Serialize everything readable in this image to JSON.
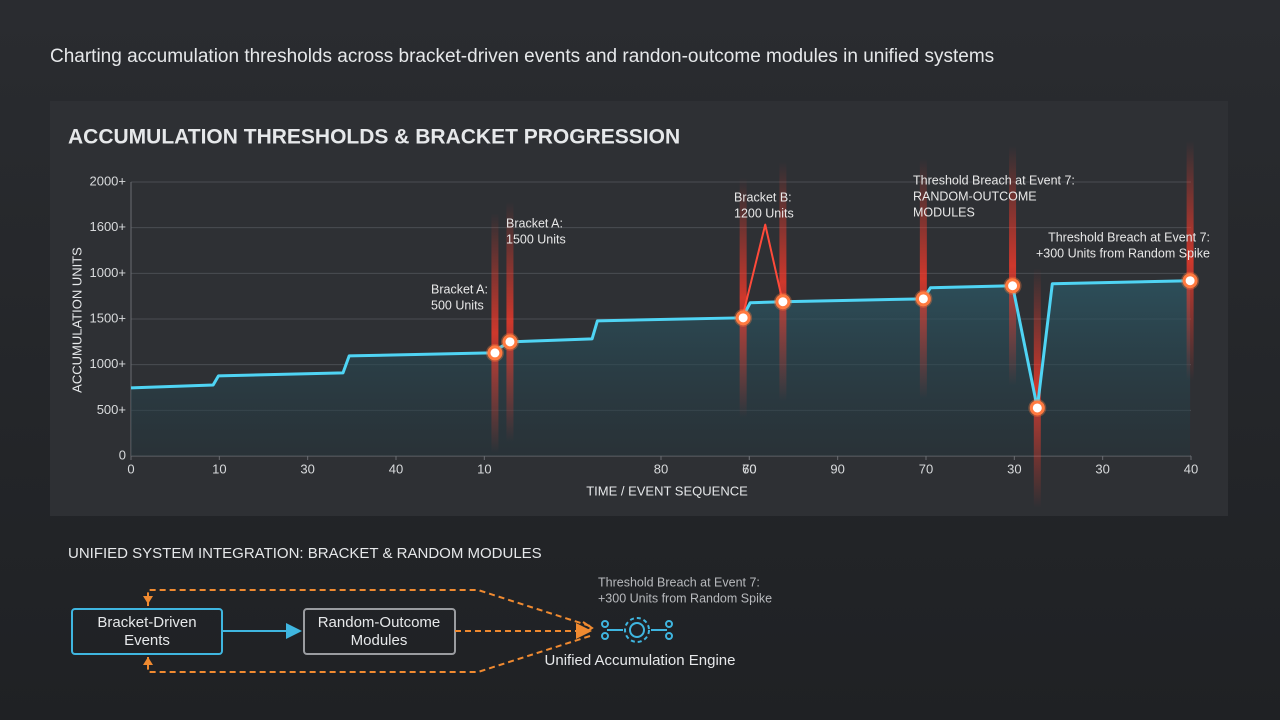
{
  "header": {
    "title": "Charting accumulation thresholds across bracket-driven events and randon-outcome modules in unified systems"
  },
  "chart_data": {
    "type": "line",
    "title": "ACCUMULATION THRESHOLDS & BRACKET PROGRESSION",
    "x_label": "TIME / EVENT SEQUENCE",
    "y_label": "ACCUMULATION UNITS",
    "xlim": [
      0,
      120
    ],
    "ylim": [
      0,
      3000
    ],
    "xticks": [
      0,
      10,
      {
        "value": 20,
        "label": "30"
      },
      {
        "value": 30,
        "label": "40"
      },
      {
        "value": 40,
        "label": "10"
      },
      70,
      {
        "value": 60,
        "label": "80"
      },
      {
        "value": 70,
        "label": "60"
      },
      {
        "value": 80,
        "label": "90"
      },
      {
        "value": 90,
        "label": "70"
      },
      {
        "value": 100,
        "label": "30"
      },
      {
        "value": 110,
        "label": "30"
      },
      {
        "value": 120,
        "label": "40"
      }
    ],
    "yticks": [
      0,
      {
        "value": 500,
        "label": "500+"
      },
      {
        "value": 1000,
        "label": "1000+"
      },
      {
        "value": 1500,
        "label": "1500+"
      },
      {
        "value": 2000,
        "label": "1000+"
      },
      {
        "value": 2500,
        "label": "1600+"
      },
      {
        "value": 3000,
        "label": "2000+"
      }
    ],
    "grid": true,
    "series": [
      {
        "color": "#4fd4f4",
        "x": [
          0,
          9.3,
          9.9,
          24.0,
          24.7,
          40.7,
          42.9,
          52.2,
          52.8,
          69.2,
          70.1,
          73.8,
          89.7,
          90.5,
          99.8,
          102.6,
          104.3,
          119.9
        ],
        "values": [
          746,
          778,
          877,
          910,
          1096,
          1129,
          1250,
          1283,
          1480,
          1513,
          1678,
          1689,
          1721,
          1842,
          1864,
          526,
          1886,
          1919
        ]
      },
      {
        "color": "#ff4a3a",
        "x": [
          69.2,
          71.8,
          73.8
        ],
        "values": [
          1513,
          2533,
          1678
        ]
      }
    ],
    "markers": {
      "color": "#ff7a40",
      "x": [
        41.2,
        42.9,
        69.3,
        73.8,
        89.7,
        99.8,
        102.6,
        119.9
      ],
      "values": [
        1129,
        1250,
        1513,
        1689,
        1721,
        1864,
        526,
        1919
      ]
    },
    "annotations": [
      [
        "Bracket A:",
        "500 Units"
      ],
      [
        "Bracket A:",
        "1500 Units"
      ],
      [
        "Bracket B:",
        "1200 Units"
      ],
      [
        "Threshold Breach at Event 7:",
        "RANDOM-OUTCOME",
        "MODULES"
      ],
      [
        "Threshold Breach at Event 7:",
        "+300 Units from Random Spike"
      ]
    ]
  },
  "diagram": {
    "title": "UNIFIED SYSTEM INTEGRATION: BRACKET & RANDOM MODULES",
    "nodes": [
      {
        "label": [
          "Bracket-Driven",
          "Events"
        ]
      },
      {
        "label": [
          "Random-Outcome",
          "Modules"
        ]
      },
      {
        "label": [
          "Unified Accumulation Engine"
        ]
      }
    ],
    "note": [
      "Threshold Breach at Event 7:",
      "+300 Units from Random Spike"
    ]
  }
}
